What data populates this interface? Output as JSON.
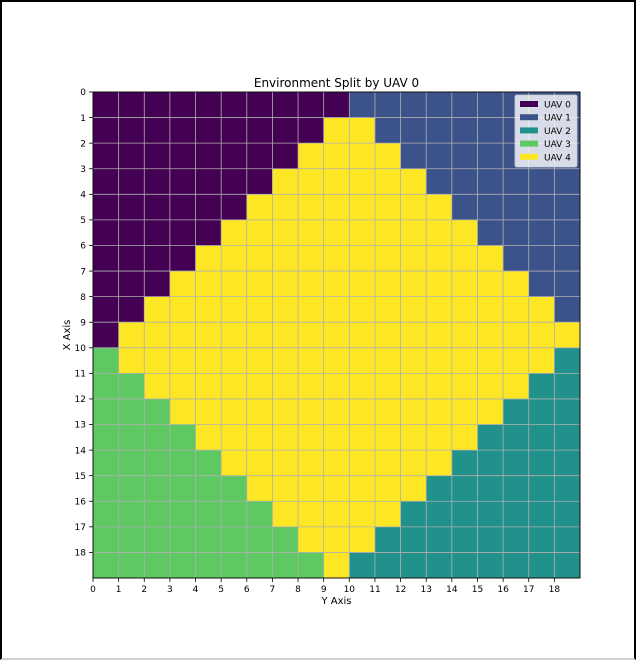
{
  "chart_data": {
    "type": "heatmap",
    "title": "Environment Split by UAV 0",
    "xlabel": "Y Axis",
    "ylabel": "X Axis",
    "x_ticks": [
      "0",
      "1",
      "2",
      "3",
      "4",
      "5",
      "6",
      "7",
      "8",
      "9",
      "10",
      "11",
      "12",
      "13",
      "14",
      "15",
      "16",
      "17",
      "18"
    ],
    "y_ticks": [
      "0",
      "1",
      "2",
      "3",
      "4",
      "5",
      "6",
      "7",
      "8",
      "9",
      "10",
      "11",
      "12",
      "13",
      "14",
      "15",
      "16",
      "17",
      "18"
    ],
    "grid": true,
    "legend_position": "top-right",
    "categories": [
      {
        "name": "UAV 0",
        "color": "#440154"
      },
      {
        "name": "UAV 1",
        "color": "#3b528b"
      },
      {
        "name": "UAV 2",
        "color": "#21918c"
      },
      {
        "name": "UAV 3",
        "color": "#5ec962"
      },
      {
        "name": "UAV 4",
        "color": "#fde725"
      }
    ],
    "matrix": [
      [
        0,
        0,
        0,
        0,
        0,
        0,
        0,
        0,
        0,
        0,
        1,
        1,
        1,
        1,
        1,
        1,
        1,
        1,
        1
      ],
      [
        0,
        0,
        0,
        0,
        0,
        0,
        0,
        0,
        0,
        4,
        4,
        1,
        1,
        1,
        1,
        1,
        1,
        1,
        1
      ],
      [
        0,
        0,
        0,
        0,
        0,
        0,
        0,
        0,
        4,
        4,
        4,
        4,
        1,
        1,
        1,
        1,
        1,
        1,
        1
      ],
      [
        0,
        0,
        0,
        0,
        0,
        0,
        0,
        4,
        4,
        4,
        4,
        4,
        4,
        1,
        1,
        1,
        1,
        1,
        1
      ],
      [
        0,
        0,
        0,
        0,
        0,
        0,
        4,
        4,
        4,
        4,
        4,
        4,
        4,
        4,
        1,
        1,
        1,
        1,
        1
      ],
      [
        0,
        0,
        0,
        0,
        0,
        4,
        4,
        4,
        4,
        4,
        4,
        4,
        4,
        4,
        4,
        1,
        1,
        1,
        1
      ],
      [
        0,
        0,
        0,
        0,
        4,
        4,
        4,
        4,
        4,
        4,
        4,
        4,
        4,
        4,
        4,
        4,
        1,
        1,
        1
      ],
      [
        0,
        0,
        0,
        4,
        4,
        4,
        4,
        4,
        4,
        4,
        4,
        4,
        4,
        4,
        4,
        4,
        4,
        1,
        1
      ],
      [
        0,
        0,
        4,
        4,
        4,
        4,
        4,
        4,
        4,
        4,
        4,
        4,
        4,
        4,
        4,
        4,
        4,
        4,
        1
      ],
      [
        0,
        4,
        4,
        4,
        4,
        4,
        4,
        4,
        4,
        4,
        4,
        4,
        4,
        4,
        4,
        4,
        4,
        4,
        4
      ],
      [
        3,
        4,
        4,
        4,
        4,
        4,
        4,
        4,
        4,
        4,
        4,
        4,
        4,
        4,
        4,
        4,
        4,
        4,
        2
      ],
      [
        3,
        3,
        4,
        4,
        4,
        4,
        4,
        4,
        4,
        4,
        4,
        4,
        4,
        4,
        4,
        4,
        4,
        2,
        2
      ],
      [
        3,
        3,
        3,
        4,
        4,
        4,
        4,
        4,
        4,
        4,
        4,
        4,
        4,
        4,
        4,
        4,
        2,
        2,
        2
      ],
      [
        3,
        3,
        3,
        3,
        4,
        4,
        4,
        4,
        4,
        4,
        4,
        4,
        4,
        4,
        4,
        2,
        2,
        2,
        2
      ],
      [
        3,
        3,
        3,
        3,
        3,
        4,
        4,
        4,
        4,
        4,
        4,
        4,
        4,
        4,
        2,
        2,
        2,
        2,
        2
      ],
      [
        3,
        3,
        3,
        3,
        3,
        3,
        4,
        4,
        4,
        4,
        4,
        4,
        4,
        2,
        2,
        2,
        2,
        2,
        2
      ],
      [
        3,
        3,
        3,
        3,
        3,
        3,
        3,
        4,
        4,
        4,
        4,
        4,
        2,
        2,
        2,
        2,
        2,
        2,
        2
      ],
      [
        3,
        3,
        3,
        3,
        3,
        3,
        3,
        3,
        4,
        4,
        4,
        2,
        2,
        2,
        2,
        2,
        2,
        2,
        2
      ],
      [
        3,
        3,
        3,
        3,
        3,
        3,
        3,
        3,
        3,
        4,
        2,
        2,
        2,
        2,
        2,
        2,
        2,
        2,
        2
      ]
    ]
  }
}
